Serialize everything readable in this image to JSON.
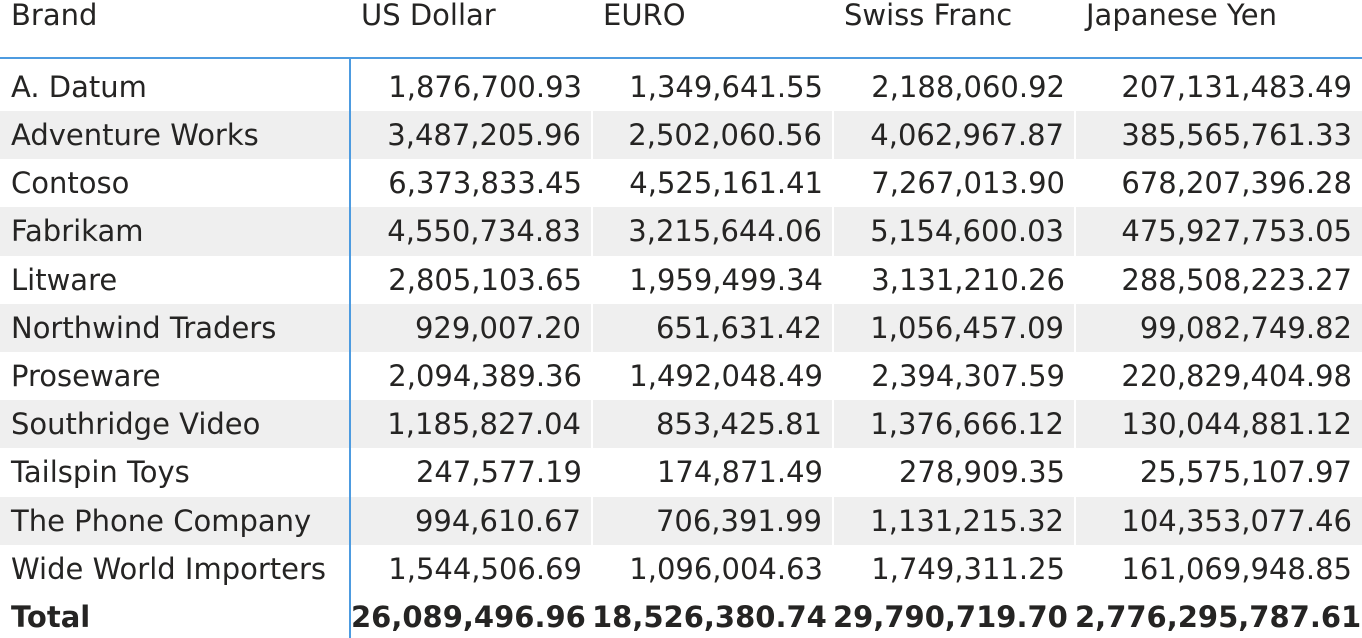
{
  "table": {
    "columns": [
      "Brand",
      "US Dollar",
      "EURO",
      "Swiss Franc",
      "Japanese Yen"
    ],
    "rows": [
      {
        "brand": "A. Datum",
        "usd": "1,876,700.93",
        "eur": "1,349,641.55",
        "chf": "2,188,060.92",
        "jpy": "207,131,483.49"
      },
      {
        "brand": "Adventure Works",
        "usd": "3,487,205.96",
        "eur": "2,502,060.56",
        "chf": "4,062,967.87",
        "jpy": "385,565,761.33"
      },
      {
        "brand": "Contoso",
        "usd": "6,373,833.45",
        "eur": "4,525,161.41",
        "chf": "7,267,013.90",
        "jpy": "678,207,396.28"
      },
      {
        "brand": "Fabrikam",
        "usd": "4,550,734.83",
        "eur": "3,215,644.06",
        "chf": "5,154,600.03",
        "jpy": "475,927,753.05"
      },
      {
        "brand": "Litware",
        "usd": "2,805,103.65",
        "eur": "1,959,499.34",
        "chf": "3,131,210.26",
        "jpy": "288,508,223.27"
      },
      {
        "brand": "Northwind Traders",
        "usd": "929,007.20",
        "eur": "651,631.42",
        "chf": "1,056,457.09",
        "jpy": "99,082,749.82"
      },
      {
        "brand": "Proseware",
        "usd": "2,094,389.36",
        "eur": "1,492,048.49",
        "chf": "2,394,307.59",
        "jpy": "220,829,404.98"
      },
      {
        "brand": "Southridge Video",
        "usd": "1,185,827.04",
        "eur": "853,425.81",
        "chf": "1,376,666.12",
        "jpy": "130,044,881.12"
      },
      {
        "brand": "Tailspin Toys",
        "usd": "247,577.19",
        "eur": "174,871.49",
        "chf": "278,909.35",
        "jpy": "25,575,107.97"
      },
      {
        "brand": "The Phone Company",
        "usd": "994,610.67",
        "eur": "706,391.99",
        "chf": "1,131,215.32",
        "jpy": "104,353,077.46"
      },
      {
        "brand": "Wide World Importers",
        "usd": "1,544,506.69",
        "eur": "1,096,004.63",
        "chf": "1,749,311.25",
        "jpy": "161,069,948.85"
      }
    ],
    "total": {
      "label": "Total",
      "usd": "26,089,496.96",
      "eur": "18,526,380.74",
      "chf": "29,790,719.70",
      "jpy": "2,776,295,787.61"
    },
    "colors": {
      "accent_line": "#4d9be0",
      "band": "#efefef",
      "text": "#252423"
    }
  }
}
